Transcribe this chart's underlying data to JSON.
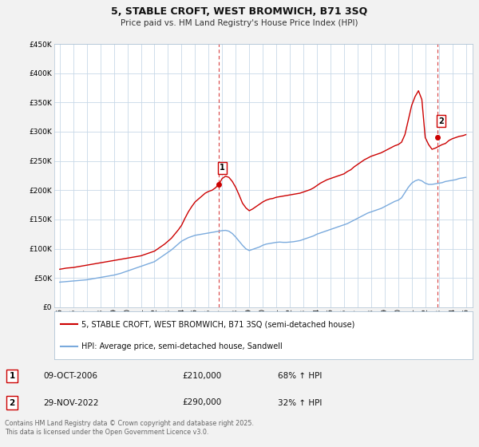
{
  "title": "5, STABLE CROFT, WEST BROMWICH, B71 3SQ",
  "subtitle": "Price paid vs. HM Land Registry's House Price Index (HPI)",
  "background_color": "#f2f2f2",
  "plot_bg_color": "#ffffff",
  "grid_color": "#c8d8e8",
  "red_line_color": "#cc0000",
  "blue_line_color": "#7aaadd",
  "ylim": [
    0,
    450000
  ],
  "yticks": [
    0,
    50000,
    100000,
    150000,
    200000,
    250000,
    300000,
    350000,
    400000,
    450000
  ],
  "ytick_labels": [
    "£0",
    "£50K",
    "£100K",
    "£150K",
    "£200K",
    "£250K",
    "£300K",
    "£350K",
    "£400K",
    "£450K"
  ],
  "xticks": [
    1995,
    1996,
    1997,
    1998,
    1999,
    2000,
    2001,
    2002,
    2003,
    2004,
    2005,
    2006,
    2007,
    2008,
    2009,
    2010,
    2011,
    2012,
    2013,
    2014,
    2015,
    2016,
    2017,
    2018,
    2019,
    2020,
    2021,
    2022,
    2023,
    2024,
    2025
  ],
  "sale1_x": 2006.77,
  "sale1_y": 210000,
  "sale1_label": "1",
  "sale1_date": "09-OCT-2006",
  "sale1_price": "£210,000",
  "sale1_hpi": "68% ↑ HPI",
  "sale2_x": 2022.91,
  "sale2_y": 290000,
  "sale2_label": "2",
  "sale2_date": "29-NOV-2022",
  "sale2_price": "£290,000",
  "sale2_hpi": "32% ↑ HPI",
  "legend_line1": "5, STABLE CROFT, WEST BROMWICH, B71 3SQ (semi-detached house)",
  "legend_line2": "HPI: Average price, semi-detached house, Sandwell",
  "footer": "Contains HM Land Registry data © Crown copyright and database right 2025.\nThis data is licensed under the Open Government Licence v3.0.",
  "red_x": [
    1995.0,
    1995.25,
    1995.5,
    1995.75,
    1996.0,
    1996.25,
    1996.5,
    1996.75,
    1997.0,
    1997.25,
    1997.5,
    1997.75,
    1998.0,
    1998.25,
    1998.5,
    1998.75,
    1999.0,
    1999.25,
    1999.5,
    1999.75,
    2000.0,
    2000.25,
    2000.5,
    2000.75,
    2001.0,
    2001.25,
    2001.5,
    2001.75,
    2002.0,
    2002.25,
    2002.5,
    2002.75,
    2003.0,
    2003.25,
    2003.5,
    2003.75,
    2004.0,
    2004.25,
    2004.5,
    2004.75,
    2005.0,
    2005.25,
    2005.5,
    2005.75,
    2006.0,
    2006.25,
    2006.5,
    2006.75,
    2007.0,
    2007.25,
    2007.5,
    2007.75,
    2008.0,
    2008.25,
    2008.5,
    2008.75,
    2009.0,
    2009.25,
    2009.5,
    2009.75,
    2010.0,
    2010.25,
    2010.5,
    2010.75,
    2011.0,
    2011.25,
    2011.5,
    2011.75,
    2012.0,
    2012.25,
    2012.5,
    2012.75,
    2013.0,
    2013.25,
    2013.5,
    2013.75,
    2014.0,
    2014.25,
    2014.5,
    2014.75,
    2015.0,
    2015.25,
    2015.5,
    2015.75,
    2016.0,
    2016.25,
    2016.5,
    2016.75,
    2017.0,
    2017.25,
    2017.5,
    2017.75,
    2018.0,
    2018.25,
    2018.5,
    2018.75,
    2019.0,
    2019.25,
    2019.5,
    2019.75,
    2020.0,
    2020.25,
    2020.5,
    2020.75,
    2021.0,
    2021.25,
    2021.5,
    2021.75,
    2022.0,
    2022.25,
    2022.5,
    2022.75,
    2023.0,
    2023.25,
    2023.5,
    2023.75,
    2024.0,
    2024.25,
    2024.5,
    2024.75,
    2025.0
  ],
  "red_y": [
    65000,
    66000,
    67000,
    67500,
    68000,
    69000,
    70000,
    71000,
    72000,
    73000,
    74000,
    75000,
    76000,
    77000,
    78000,
    79000,
    80000,
    81000,
    82000,
    83000,
    84000,
    85000,
    86000,
    87000,
    88000,
    90000,
    92000,
    94000,
    96000,
    100000,
    104000,
    108000,
    113000,
    118000,
    125000,
    132000,
    140000,
    152000,
    163000,
    172000,
    180000,
    185000,
    190000,
    195000,
    198000,
    200000,
    204000,
    210000,
    220000,
    224000,
    222000,
    215000,
    205000,
    192000,
    178000,
    170000,
    165000,
    168000,
    172000,
    176000,
    180000,
    183000,
    185000,
    186000,
    188000,
    189000,
    190000,
    191000,
    192000,
    193000,
    194000,
    195000,
    197000,
    199000,
    201000,
    204000,
    208000,
    212000,
    215000,
    218000,
    220000,
    222000,
    224000,
    226000,
    228000,
    232000,
    235000,
    240000,
    244000,
    248000,
    252000,
    255000,
    258000,
    260000,
    262000,
    264000,
    267000,
    270000,
    273000,
    276000,
    278000,
    282000,
    295000,
    320000,
    345000,
    360000,
    370000,
    355000,
    290000,
    278000,
    270000,
    272000,
    275000,
    278000,
    280000,
    285000,
    288000,
    290000,
    292000,
    293000,
    295000
  ],
  "blue_x": [
    1995.0,
    1995.25,
    1995.5,
    1995.75,
    1996.0,
    1996.25,
    1996.5,
    1996.75,
    1997.0,
    1997.25,
    1997.5,
    1997.75,
    1998.0,
    1998.25,
    1998.5,
    1998.75,
    1999.0,
    1999.25,
    1999.5,
    1999.75,
    2000.0,
    2000.25,
    2000.5,
    2000.75,
    2001.0,
    2001.25,
    2001.5,
    2001.75,
    2002.0,
    2002.25,
    2002.5,
    2002.75,
    2003.0,
    2003.25,
    2003.5,
    2003.75,
    2004.0,
    2004.25,
    2004.5,
    2004.75,
    2005.0,
    2005.25,
    2005.5,
    2005.75,
    2006.0,
    2006.25,
    2006.5,
    2006.75,
    2007.0,
    2007.25,
    2007.5,
    2007.75,
    2008.0,
    2008.25,
    2008.5,
    2008.75,
    2009.0,
    2009.25,
    2009.5,
    2009.75,
    2010.0,
    2010.25,
    2010.5,
    2010.75,
    2011.0,
    2011.25,
    2011.5,
    2011.75,
    2012.0,
    2012.25,
    2012.5,
    2012.75,
    2013.0,
    2013.25,
    2013.5,
    2013.75,
    2014.0,
    2014.25,
    2014.5,
    2014.75,
    2015.0,
    2015.25,
    2015.5,
    2015.75,
    2016.0,
    2016.25,
    2016.5,
    2016.75,
    2017.0,
    2017.25,
    2017.5,
    2017.75,
    2018.0,
    2018.25,
    2018.5,
    2018.75,
    2019.0,
    2019.25,
    2019.5,
    2019.75,
    2020.0,
    2020.25,
    2020.5,
    2020.75,
    2021.0,
    2021.25,
    2021.5,
    2021.75,
    2022.0,
    2022.25,
    2022.5,
    2022.75,
    2023.0,
    2023.25,
    2023.5,
    2023.75,
    2024.0,
    2024.25,
    2024.5,
    2024.75,
    2025.0
  ],
  "blue_y": [
    43000,
    43500,
    44000,
    44500,
    45000,
    45500,
    46000,
    46500,
    47000,
    48000,
    49000,
    50000,
    51000,
    52000,
    53000,
    54000,
    55000,
    56500,
    58000,
    60000,
    62000,
    64000,
    66000,
    68000,
    70000,
    72000,
    74000,
    76000,
    78000,
    82000,
    86000,
    90000,
    94000,
    98000,
    103000,
    108000,
    113000,
    116000,
    119000,
    121000,
    123000,
    124000,
    125000,
    126000,
    127000,
    128000,
    129000,
    130000,
    131000,
    131500,
    130000,
    126000,
    120000,
    113000,
    106000,
    100000,
    97000,
    99000,
    101000,
    103000,
    106000,
    108000,
    109000,
    110000,
    111000,
    111500,
    111000,
    111000,
    111500,
    112000,
    113000,
    114000,
    116000,
    118000,
    120000,
    122000,
    125000,
    127000,
    129000,
    131000,
    133000,
    135000,
    137000,
    139000,
    141000,
    143000,
    146000,
    149000,
    152000,
    155000,
    158000,
    161000,
    163000,
    165000,
    167000,
    169000,
    172000,
    175000,
    178000,
    181000,
    183000,
    187000,
    196000,
    205000,
    212000,
    216000,
    218000,
    216000,
    212000,
    210000,
    210000,
    211000,
    212000,
    213000,
    215000,
    216000,
    217000,
    218000,
    220000,
    221000,
    222000
  ]
}
